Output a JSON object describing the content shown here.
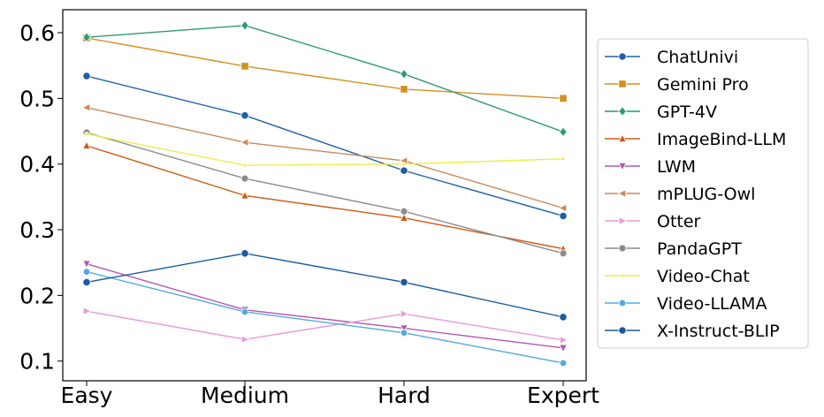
{
  "chart_data": {
    "type": "line",
    "title": "",
    "xlabel": "",
    "ylabel": "",
    "categories": [
      "Easy",
      "Medium",
      "Hard",
      "Expert"
    ],
    "ylim": [
      0.07,
      0.635
    ],
    "yticks": [
      "0.1",
      "0.2",
      "0.3",
      "0.4",
      "0.5",
      "0.6"
    ],
    "grid": false,
    "legend_position": "right, outside plot",
    "series": [
      {
        "name": "ChatUnivi",
        "color": "#1f5fa8",
        "marker": "circle",
        "values": [
          0.534,
          0.474,
          0.39,
          0.321
        ]
      },
      {
        "name": "Gemini Pro",
        "color": "#d4901f",
        "marker": "square",
        "values": [
          0.592,
          0.549,
          0.514,
          0.5
        ]
      },
      {
        "name": "GPT-4V",
        "color": "#2f9973",
        "marker": "diamond",
        "values": [
          0.593,
          0.611,
          0.537,
          0.449
        ]
      },
      {
        "name": "ImageBind-LLM",
        "color": "#cc5a14",
        "marker": "triangle-up",
        "values": [
          0.428,
          0.352,
          0.318,
          0.271
        ]
      },
      {
        "name": "LWM",
        "color": "#b359b3",
        "marker": "triangle-down",
        "values": [
          0.248,
          0.178,
          0.15,
          0.12
        ]
      },
      {
        "name": "mPLUG-Owl",
        "color": "#c98a5a",
        "marker": "triangle-left",
        "values": [
          0.486,
          0.433,
          0.405,
          0.333
        ]
      },
      {
        "name": "Otter",
        "color": "#e89ad8",
        "marker": "triangle-right",
        "values": [
          0.176,
          0.133,
          0.172,
          0.132
        ]
      },
      {
        "name": "PandaGPT",
        "color": "#8c8c8c",
        "marker": "octagon",
        "values": [
          0.448,
          0.378,
          0.328,
          0.264
        ]
      },
      {
        "name": "Video-Chat",
        "color": "#eded48",
        "marker": "point",
        "values": [
          0.446,
          0.398,
          0.4,
          0.408
        ]
      },
      {
        "name": "Video-LLAMA",
        "color": "#57a8dd",
        "marker": "hexagon",
        "values": [
          0.236,
          0.175,
          0.143,
          0.097
        ]
      },
      {
        "name": "X-Instruct-BLIP",
        "color": "#1a5aa0",
        "marker": "circle",
        "values": [
          0.22,
          0.264,
          0.22,
          0.167
        ]
      }
    ]
  }
}
